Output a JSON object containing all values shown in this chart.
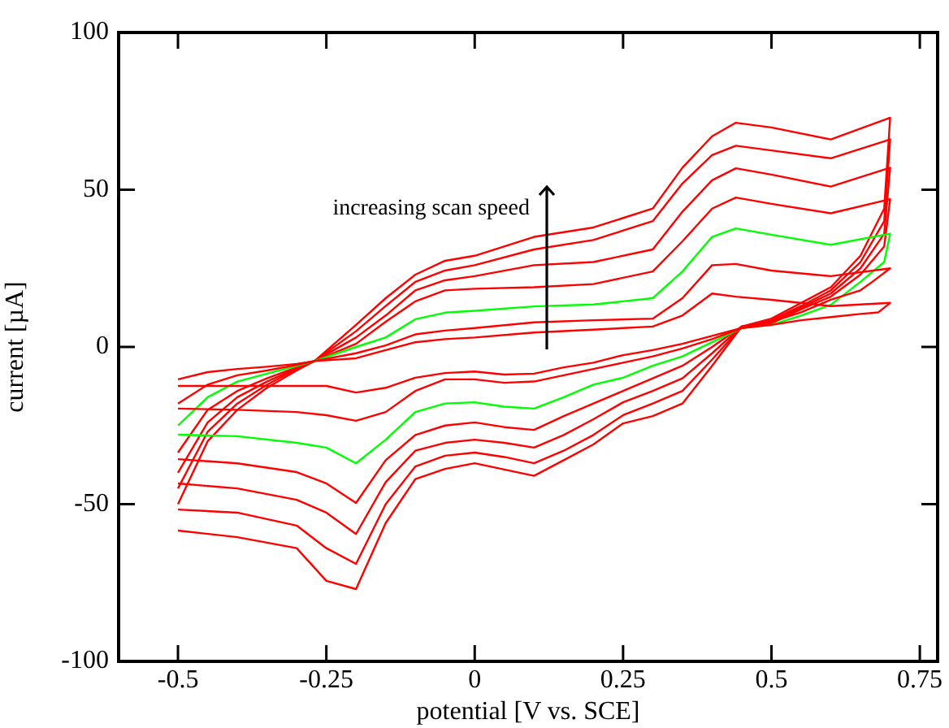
{
  "chart_data": {
    "type": "line",
    "xlabel": "potential [V vs. SCE]",
    "ylabel": "current [µA]",
    "annotations": [
      "increasing scan speed"
    ],
    "xlim": [
      -0.6,
      0.78
    ],
    "xticks": [
      -0.5,
      -0.25,
      0,
      0.25,
      0.5,
      0.75
    ],
    "ylim": [
      -100,
      100
    ],
    "yticks": [
      -100,
      -50,
      0,
      50,
      100
    ],
    "grid": false,
    "legend": false,
    "series": [
      {
        "type": "line",
        "color": "#ff0000",
        "x": [
          -0.5,
          -0.45,
          -0.4,
          -0.35,
          -0.3,
          -0.27,
          -0.2,
          -0.15,
          -0.1,
          -0.05,
          0,
          0.1,
          0.2,
          0.3,
          0.35,
          0.4,
          0.44,
          0.5,
          0.6,
          0.7,
          0.68,
          0.65,
          0.6,
          0.55,
          0.5,
          0.45,
          0.4,
          0.35,
          0.3,
          0.25,
          0.2,
          0.15,
          0.1,
          0.05,
          0,
          -0.05,
          -0.1,
          -0.15,
          -0.2,
          -0.25,
          -0.3,
          -0.4,
          -0.5
        ],
        "values": [
          -10.3,
          -8,
          -7,
          -6.3,
          -5.4,
          -4.5,
          -3.6,
          -1,
          1.5,
          2.5,
          3,
          4.6,
          5.5,
          6.5,
          10,
          17,
          16,
          15,
          13,
          14,
          11,
          10.5,
          9.5,
          8.5,
          7,
          6,
          3.5,
          1,
          -1,
          -2.6,
          -5,
          -6.5,
          -8.5,
          -8.8,
          -7.8,
          -8.3,
          -9.8,
          -13,
          -14.5,
          -12.4,
          -12.4,
          -12.4,
          -12.4
        ]
      },
      {
        "type": "line",
        "color": "#ff0000",
        "x": [
          -0.5,
          -0.45,
          -0.4,
          -0.35,
          -0.3,
          -0.27,
          -0.2,
          -0.15,
          -0.1,
          -0.05,
          0,
          0.1,
          0.2,
          0.3,
          0.35,
          0.4,
          0.44,
          0.5,
          0.6,
          0.7,
          0.67,
          0.65,
          0.6,
          0.55,
          0.5,
          0.45,
          0.4,
          0.35,
          0.3,
          0.25,
          0.2,
          0.15,
          0.1,
          0.05,
          0,
          -0.05,
          -0.1,
          -0.15,
          -0.2,
          -0.25,
          -0.3,
          -0.4,
          -0.5
        ],
        "values": [
          -18,
          -12,
          -9,
          -7.5,
          -5.7,
          -4.5,
          -2,
          0.5,
          4,
          5.2,
          6,
          7.8,
          8.5,
          9,
          15.5,
          26,
          26.4,
          24.3,
          22.5,
          25,
          20.7,
          18,
          15,
          11,
          8,
          6,
          2.5,
          -0.5,
          -3,
          -5,
          -7,
          -9,
          -11,
          -11.4,
          -10.3,
          -10.3,
          -14,
          -20.7,
          -23.5,
          -21.7,
          -20.7,
          -20,
          -19.6
        ]
      },
      {
        "type": "line",
        "color": "#00ff00",
        "x": [
          -0.5,
          -0.45,
          -0.4,
          -0.35,
          -0.3,
          -0.27,
          -0.2,
          -0.15,
          -0.1,
          -0.05,
          0,
          0.1,
          0.2,
          0.3,
          0.35,
          0.4,
          0.44,
          0.5,
          0.6,
          0.7,
          0.69,
          0.65,
          0.6,
          0.55,
          0.5,
          0.45,
          0.4,
          0.35,
          0.3,
          0.25,
          0.2,
          0.15,
          0.1,
          0.05,
          0,
          -0.05,
          -0.1,
          -0.15,
          -0.2,
          -0.25,
          -0.3,
          -0.4,
          -0.5
        ],
        "values": [
          -25,
          -16,
          -11,
          -8.5,
          -6,
          -4.5,
          0,
          3,
          8.8,
          10.9,
          11.5,
          12.9,
          13.5,
          15.5,
          24,
          35,
          37.7,
          35.7,
          32.5,
          36,
          27,
          20.7,
          13.4,
          10,
          7,
          6,
          1.5,
          -3,
          -6,
          -9.8,
          -12,
          -16,
          -19.6,
          -19,
          -17.6,
          -18,
          -20.7,
          -29.5,
          -37,
          -32,
          -30.5,
          -28.4,
          -27.9
        ]
      },
      {
        "type": "line",
        "color": "#ff0000",
        "x": [
          -0.5,
          -0.45,
          -0.4,
          -0.35,
          -0.3,
          -0.27,
          -0.2,
          -0.15,
          -0.1,
          -0.05,
          0,
          0.1,
          0.2,
          0.3,
          0.35,
          0.4,
          0.44,
          0.5,
          0.6,
          0.7,
          0.69,
          0.65,
          0.6,
          0.55,
          0.5,
          0.45,
          0.4,
          0.35,
          0.3,
          0.25,
          0.2,
          0.15,
          0.1,
          0.05,
          0,
          -0.05,
          -0.1,
          -0.15,
          -0.2,
          -0.25,
          -0.3,
          -0.4,
          -0.5
        ],
        "values": [
          -33.6,
          -20,
          -14,
          -10,
          -6.5,
          -4.5,
          1,
          8,
          14.5,
          18,
          18.5,
          19,
          20,
          24,
          33.6,
          44,
          47.5,
          45.5,
          42.5,
          47,
          32,
          23,
          16,
          12,
          7.5,
          6.5,
          0,
          -6,
          -10,
          -14,
          -18,
          -22,
          -26.4,
          -25.5,
          -24,
          -25,
          -28,
          -36,
          -49.6,
          -43.4,
          -39.8,
          -37,
          -35.7
        ]
      },
      {
        "type": "line",
        "color": "#ff0000",
        "x": [
          -0.5,
          -0.45,
          -0.4,
          -0.35,
          -0.3,
          -0.27,
          -0.2,
          -0.15,
          -0.1,
          -0.05,
          0,
          0.1,
          0.2,
          0.3,
          0.35,
          0.4,
          0.44,
          0.5,
          0.6,
          0.7,
          0.69,
          0.65,
          0.6,
          0.55,
          0.5,
          0.45,
          0.4,
          0.35,
          0.3,
          0.25,
          0.2,
          0.15,
          0.1,
          0.05,
          0,
          -0.05,
          -0.1,
          -0.15,
          -0.2,
          -0.25,
          -0.3,
          -0.4,
          -0.5
        ],
        "values": [
          -40,
          -24,
          -16,
          -11,
          -6.8,
          -4.5,
          3,
          10,
          18,
          21.2,
          22.5,
          26,
          27,
          31,
          43,
          53,
          56.8,
          54.8,
          51,
          57,
          36,
          25,
          17,
          12.5,
          8,
          6.5,
          -2,
          -10,
          -14,
          -17.6,
          -23,
          -28,
          -32,
          -30.5,
          -29.5,
          -30.5,
          -33,
          -43,
          -59.5,
          -52.7,
          -48.6,
          -45,
          -43.4
        ]
      },
      {
        "type": "line",
        "color": "#ff0000",
        "x": [
          -0.5,
          -0.45,
          -0.4,
          -0.35,
          -0.3,
          -0.27,
          -0.2,
          -0.15,
          -0.1,
          -0.05,
          0,
          0.1,
          0.2,
          0.3,
          0.35,
          0.4,
          0.44,
          0.5,
          0.6,
          0.7,
          0.69,
          0.65,
          0.6,
          0.55,
          0.5,
          0.45,
          0.4,
          0.35,
          0.3,
          0.25,
          0.2,
          0.15,
          0.1,
          0.05,
          0,
          -0.05,
          -0.1,
          -0.15,
          -0.2,
          -0.25,
          -0.3,
          -0.4,
          -0.5
        ],
        "values": [
          -45,
          -27,
          -18,
          -12,
          -7,
          -4.5,
          5,
          13,
          20.7,
          24.3,
          26,
          31,
          34,
          40,
          52,
          61,
          64,
          62.5,
          60,
          66,
          40,
          27,
          18,
          13,
          8.5,
          6.5,
          -4,
          -14,
          -18,
          -21.7,
          -28,
          -33,
          -37,
          -35,
          -33.6,
          -34.6,
          -38,
          -50,
          -69,
          -64,
          -56.8,
          -52.7,
          -51.7
        ]
      },
      {
        "type": "line",
        "color": "#ff0000",
        "x": [
          -0.5,
          -0.45,
          -0.4,
          -0.35,
          -0.3,
          -0.27,
          -0.2,
          -0.15,
          -0.1,
          -0.05,
          0,
          0.1,
          0.2,
          0.3,
          0.35,
          0.4,
          0.44,
          0.5,
          0.6,
          0.7,
          0.69,
          0.65,
          0.6,
          0.55,
          0.5,
          0.45,
          0.4,
          0.35,
          0.3,
          0.25,
          0.2,
          0.15,
          0.1,
          0.05,
          0,
          -0.05,
          -0.1,
          -0.15,
          -0.2,
          -0.25,
          -0.3,
          -0.4,
          -0.5
        ],
        "values": [
          -50,
          -30,
          -20,
          -13,
          -7.5,
          -4.5,
          7,
          15.5,
          23,
          27.4,
          29,
          35,
          38,
          44,
          57,
          67,
          71.3,
          69.8,
          66,
          72.9,
          44,
          29,
          19,
          14,
          9,
          6.5,
          -6,
          -18,
          -22,
          -24.3,
          -31,
          -36,
          -41,
          -39,
          -37,
          -38.8,
          -42,
          -56,
          -77,
          -74.4,
          -64,
          -60.5,
          -58.4
        ]
      }
    ]
  }
}
